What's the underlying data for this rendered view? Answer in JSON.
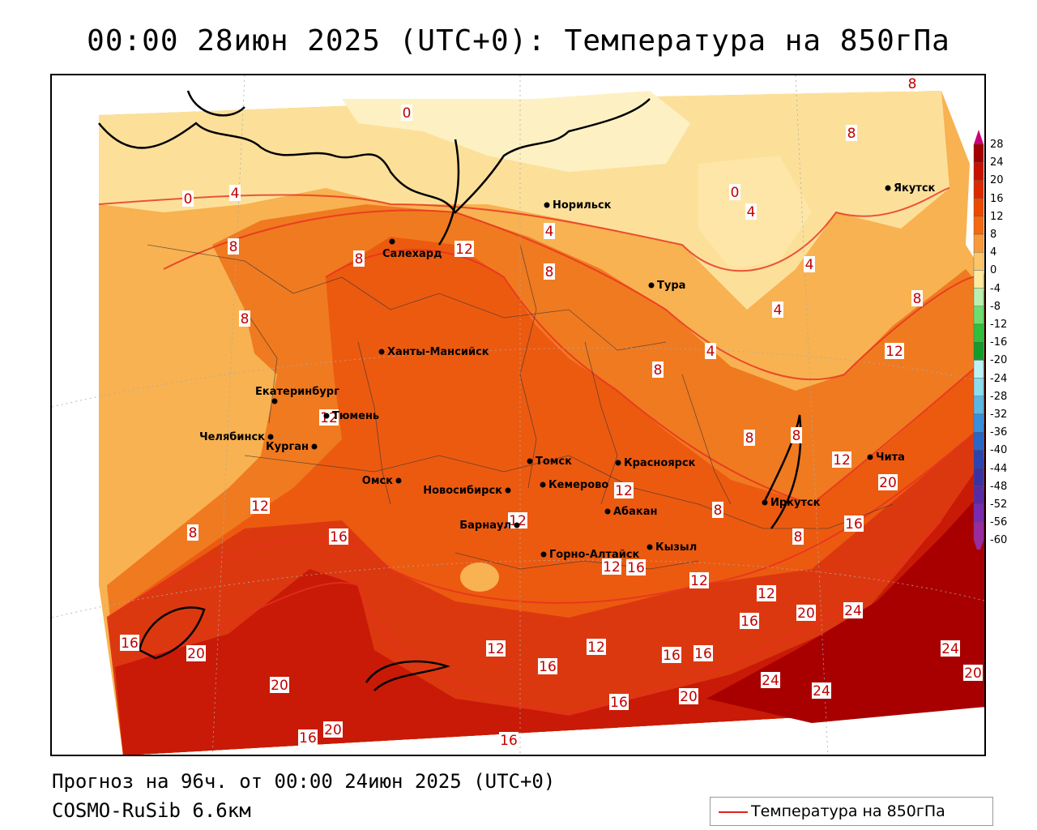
{
  "title": "00:00 28июн 2025 (UTC+0): Температура на 850гПа",
  "footer": {
    "forecast": "Прогноз на 96ч. от 00:00 24июн 2025 (UTC+0)",
    "model": "COSMO-RuSib 6.6км"
  },
  "legend": {
    "label": "Температура на 850гПа",
    "color": "#e02020"
  },
  "colorbar": {
    "levels": [
      "28",
      "24",
      "20",
      "16",
      "12",
      "8",
      "4",
      "0",
      "-4",
      "-8",
      "-12",
      "-16",
      "-20",
      "-24",
      "-28",
      "-32",
      "-36",
      "-40",
      "-44",
      "-48",
      "-52",
      "-56",
      "-60"
    ],
    "colors": [
      "#c8007a",
      "#a50000",
      "#c81200",
      "#dc2a00",
      "#ec4a00",
      "#f36a12",
      "#f79a3c",
      "#fbc66a",
      "#fde9a0",
      "#b8f0b0",
      "#6fdc6f",
      "#2fbf3a",
      "#159a2c",
      "#bdf2f4",
      "#8ddcec",
      "#5cb6e4",
      "#3890dc",
      "#2a66c8",
      "#2a44b0",
      "#3a32a0",
      "#5a2aa0",
      "#7a2ab0",
      "#9a2aa0"
    ]
  },
  "cities": [
    {
      "name": "Норильск"
    },
    {
      "name": "Якутск"
    },
    {
      "name": "Салехард"
    },
    {
      "name": "Тура"
    },
    {
      "name": "Ханты-Мансийск"
    },
    {
      "name": "Екатеринбург"
    },
    {
      "name": "Тюмень"
    },
    {
      "name": "Челябинск"
    },
    {
      "name": "Курган"
    },
    {
      "name": "Омск"
    },
    {
      "name": "Новосибирск"
    },
    {
      "name": "Томск"
    },
    {
      "name": "Кемерово"
    },
    {
      "name": "Красноярск"
    },
    {
      "name": "Барнаул"
    },
    {
      "name": "Абакан"
    },
    {
      "name": "Горно-Алтайск"
    },
    {
      "name": "Кызыл"
    },
    {
      "name": "Иркутск"
    },
    {
      "name": "Чита"
    }
  ],
  "isolines": [
    {
      "value": "0"
    },
    {
      "value": "0"
    },
    {
      "value": "0"
    },
    {
      "value": "4"
    },
    {
      "value": "4"
    },
    {
      "value": "4"
    },
    {
      "value": "4"
    },
    {
      "value": "4"
    },
    {
      "value": "4"
    },
    {
      "value": "8"
    },
    {
      "value": "8"
    },
    {
      "value": "8"
    },
    {
      "value": "8"
    },
    {
      "value": "8"
    },
    {
      "value": "8"
    },
    {
      "value": "8"
    },
    {
      "value": "8"
    },
    {
      "value": "8"
    },
    {
      "value": "8"
    },
    {
      "value": "8"
    },
    {
      "value": "8"
    },
    {
      "value": "8"
    },
    {
      "value": "12"
    },
    {
      "value": "12"
    },
    {
      "value": "12"
    },
    {
      "value": "12"
    },
    {
      "value": "12"
    },
    {
      "value": "12"
    },
    {
      "value": "12"
    },
    {
      "value": "12"
    },
    {
      "value": "12"
    },
    {
      "value": "12"
    },
    {
      "value": "12"
    },
    {
      "value": "12"
    },
    {
      "value": "16"
    },
    {
      "value": "16"
    },
    {
      "value": "16"
    },
    {
      "value": "16"
    },
    {
      "value": "16"
    },
    {
      "value": "16"
    },
    {
      "value": "16"
    },
    {
      "value": "16"
    },
    {
      "value": "16"
    },
    {
      "value": "16"
    },
    {
      "value": "16"
    },
    {
      "value": "20"
    },
    {
      "value": "20"
    },
    {
      "value": "20"
    },
    {
      "value": "20"
    },
    {
      "value": "20"
    },
    {
      "value": "20"
    },
    {
      "value": "20"
    },
    {
      "value": "24"
    },
    {
      "value": "24"
    },
    {
      "value": "24"
    },
    {
      "value": "24"
    },
    {
      "value": "24"
    }
  ]
}
